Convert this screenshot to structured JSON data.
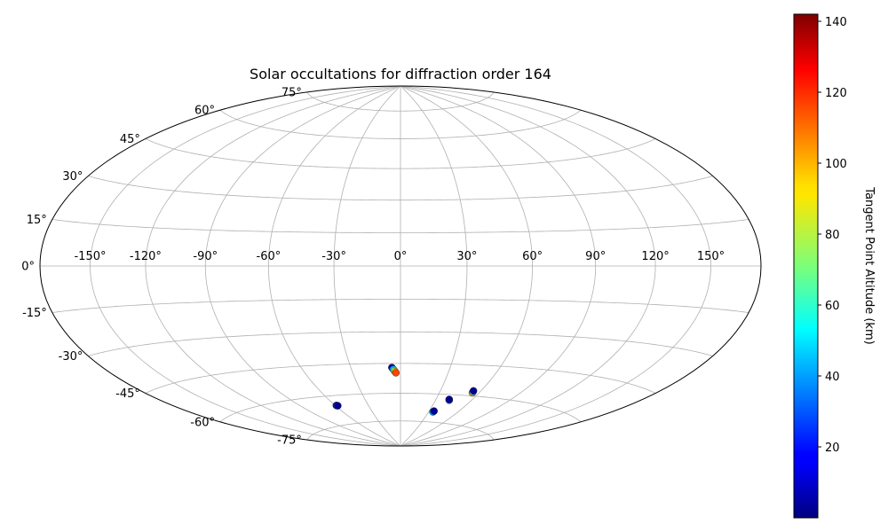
{
  "chart_data": {
    "type": "scatter",
    "projection": "hammer",
    "title": "Solar occultations for diffraction order 164",
    "xlabel": "",
    "ylabel": "",
    "grid": true,
    "longitude_ticks": [
      -150,
      -120,
      -90,
      -60,
      -30,
      0,
      30,
      60,
      90,
      120,
      150
    ],
    "longitude_tick_labels": [
      "-150°",
      "-120°",
      "-90°",
      "-60°",
      "-30°",
      "0°",
      "30°",
      "60°",
      "90°",
      "120°",
      "150°"
    ],
    "latitude_ticks": [
      75,
      60,
      45,
      30,
      15,
      0,
      -15,
      -30,
      -45,
      -60,
      -75
    ],
    "latitude_tick_labels": [
      "75°",
      "60°",
      "45°",
      "30°",
      "15°",
      "0°",
      "-15°",
      "-30°",
      "-45°",
      "-60°",
      "-75°"
    ],
    "colorbar": {
      "label": "Tangent Point Altitude (km)",
      "range": [
        0,
        142
      ],
      "ticks": [
        20,
        40,
        60,
        80,
        100,
        120,
        140
      ],
      "colormap": "jet"
    },
    "points": [
      {
        "lon": -59.0,
        "lat": -65.0,
        "alt": 5
      },
      {
        "lon": -58.5,
        "lat": -65.1,
        "alt": 25
      },
      {
        "lon": -58.0,
        "lat": -65.2,
        "alt": 2
      },
      {
        "lon": -5.2,
        "lat": -47.0,
        "alt": 3
      },
      {
        "lon": -4.8,
        "lat": -47.5,
        "alt": 20
      },
      {
        "lon": -4.3,
        "lat": -48.0,
        "alt": 45
      },
      {
        "lon": -3.8,
        "lat": -48.6,
        "alt": 70
      },
      {
        "lon": -3.3,
        "lat": -49.1,
        "alt": 95
      },
      {
        "lon": -2.9,
        "lat": -49.6,
        "alt": 115
      },
      {
        "lon": 34.5,
        "lat": -69.5,
        "alt": 40
      },
      {
        "lon": 35.0,
        "lat": -69.0,
        "alt": 2
      },
      {
        "lon": 41.5,
        "lat": -62.9,
        "alt": 30
      },
      {
        "lon": 41.0,
        "lat": -62.5,
        "alt": 2
      },
      {
        "lon": 55.0,
        "lat": -58.5,
        "alt": 105
      },
      {
        "lon": 54.8,
        "lat": -58.0,
        "alt": 60
      },
      {
        "lon": 54.5,
        "lat": -57.5,
        "alt": 3
      }
    ]
  }
}
